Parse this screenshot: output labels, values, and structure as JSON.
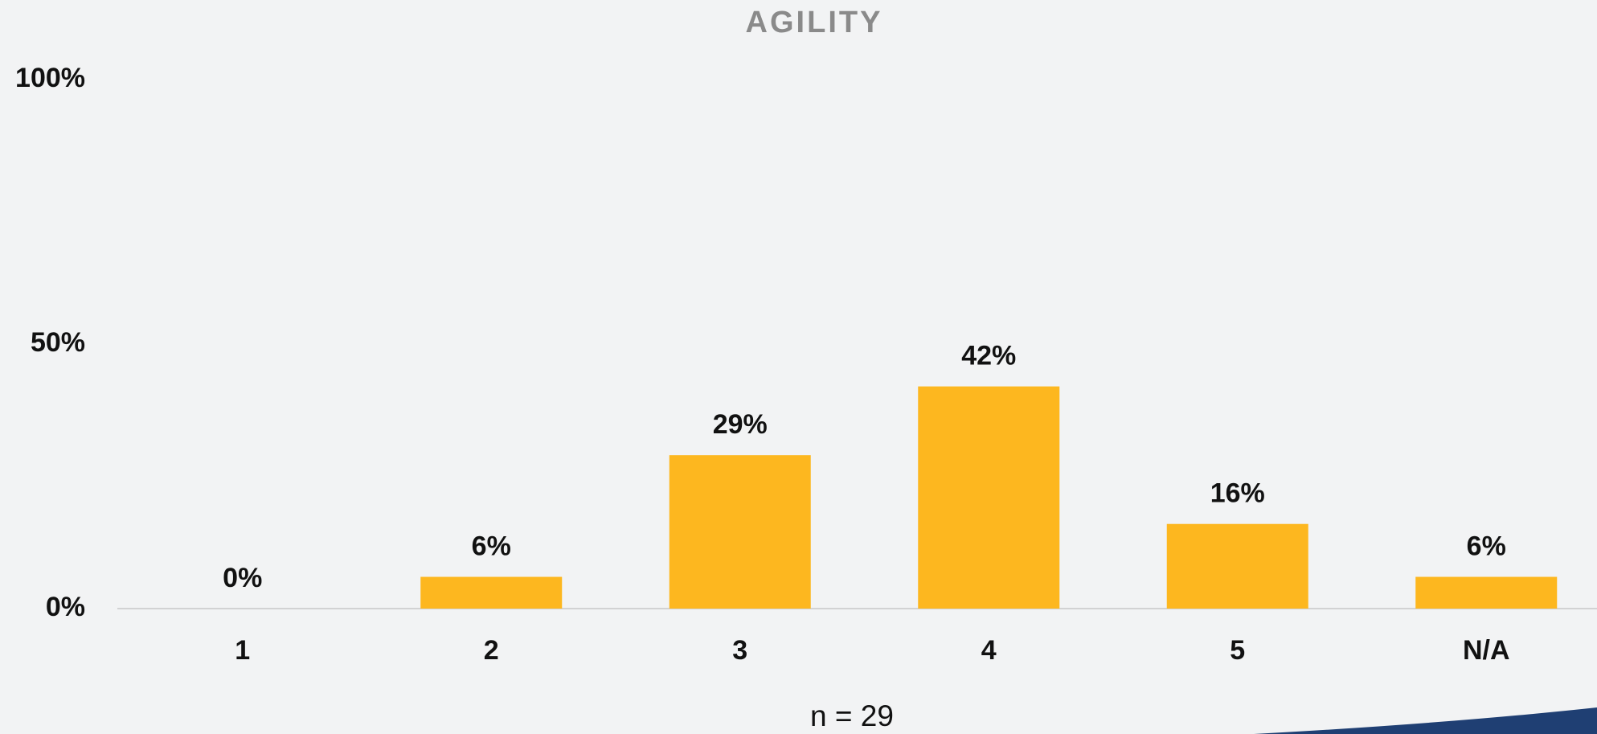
{
  "chart_data": {
    "type": "bar",
    "title": "AGILITY",
    "categories": [
      "1",
      "2",
      "3",
      "4",
      "5",
      "N/A"
    ],
    "values": [
      0,
      6,
      29,
      42,
      16,
      6
    ],
    "value_labels": [
      "0%",
      "6%",
      "29%",
      "42%",
      "16%",
      "6%"
    ],
    "color": "#fdb71f",
    "ylim": [
      0,
      100
    ],
    "yticks": [
      {
        "value": 0,
        "label": "0%"
      },
      {
        "value": 50,
        "label": "50%"
      },
      {
        "value": 100,
        "label": "100%"
      }
    ],
    "grid": false,
    "annotation": "n = 29"
  }
}
